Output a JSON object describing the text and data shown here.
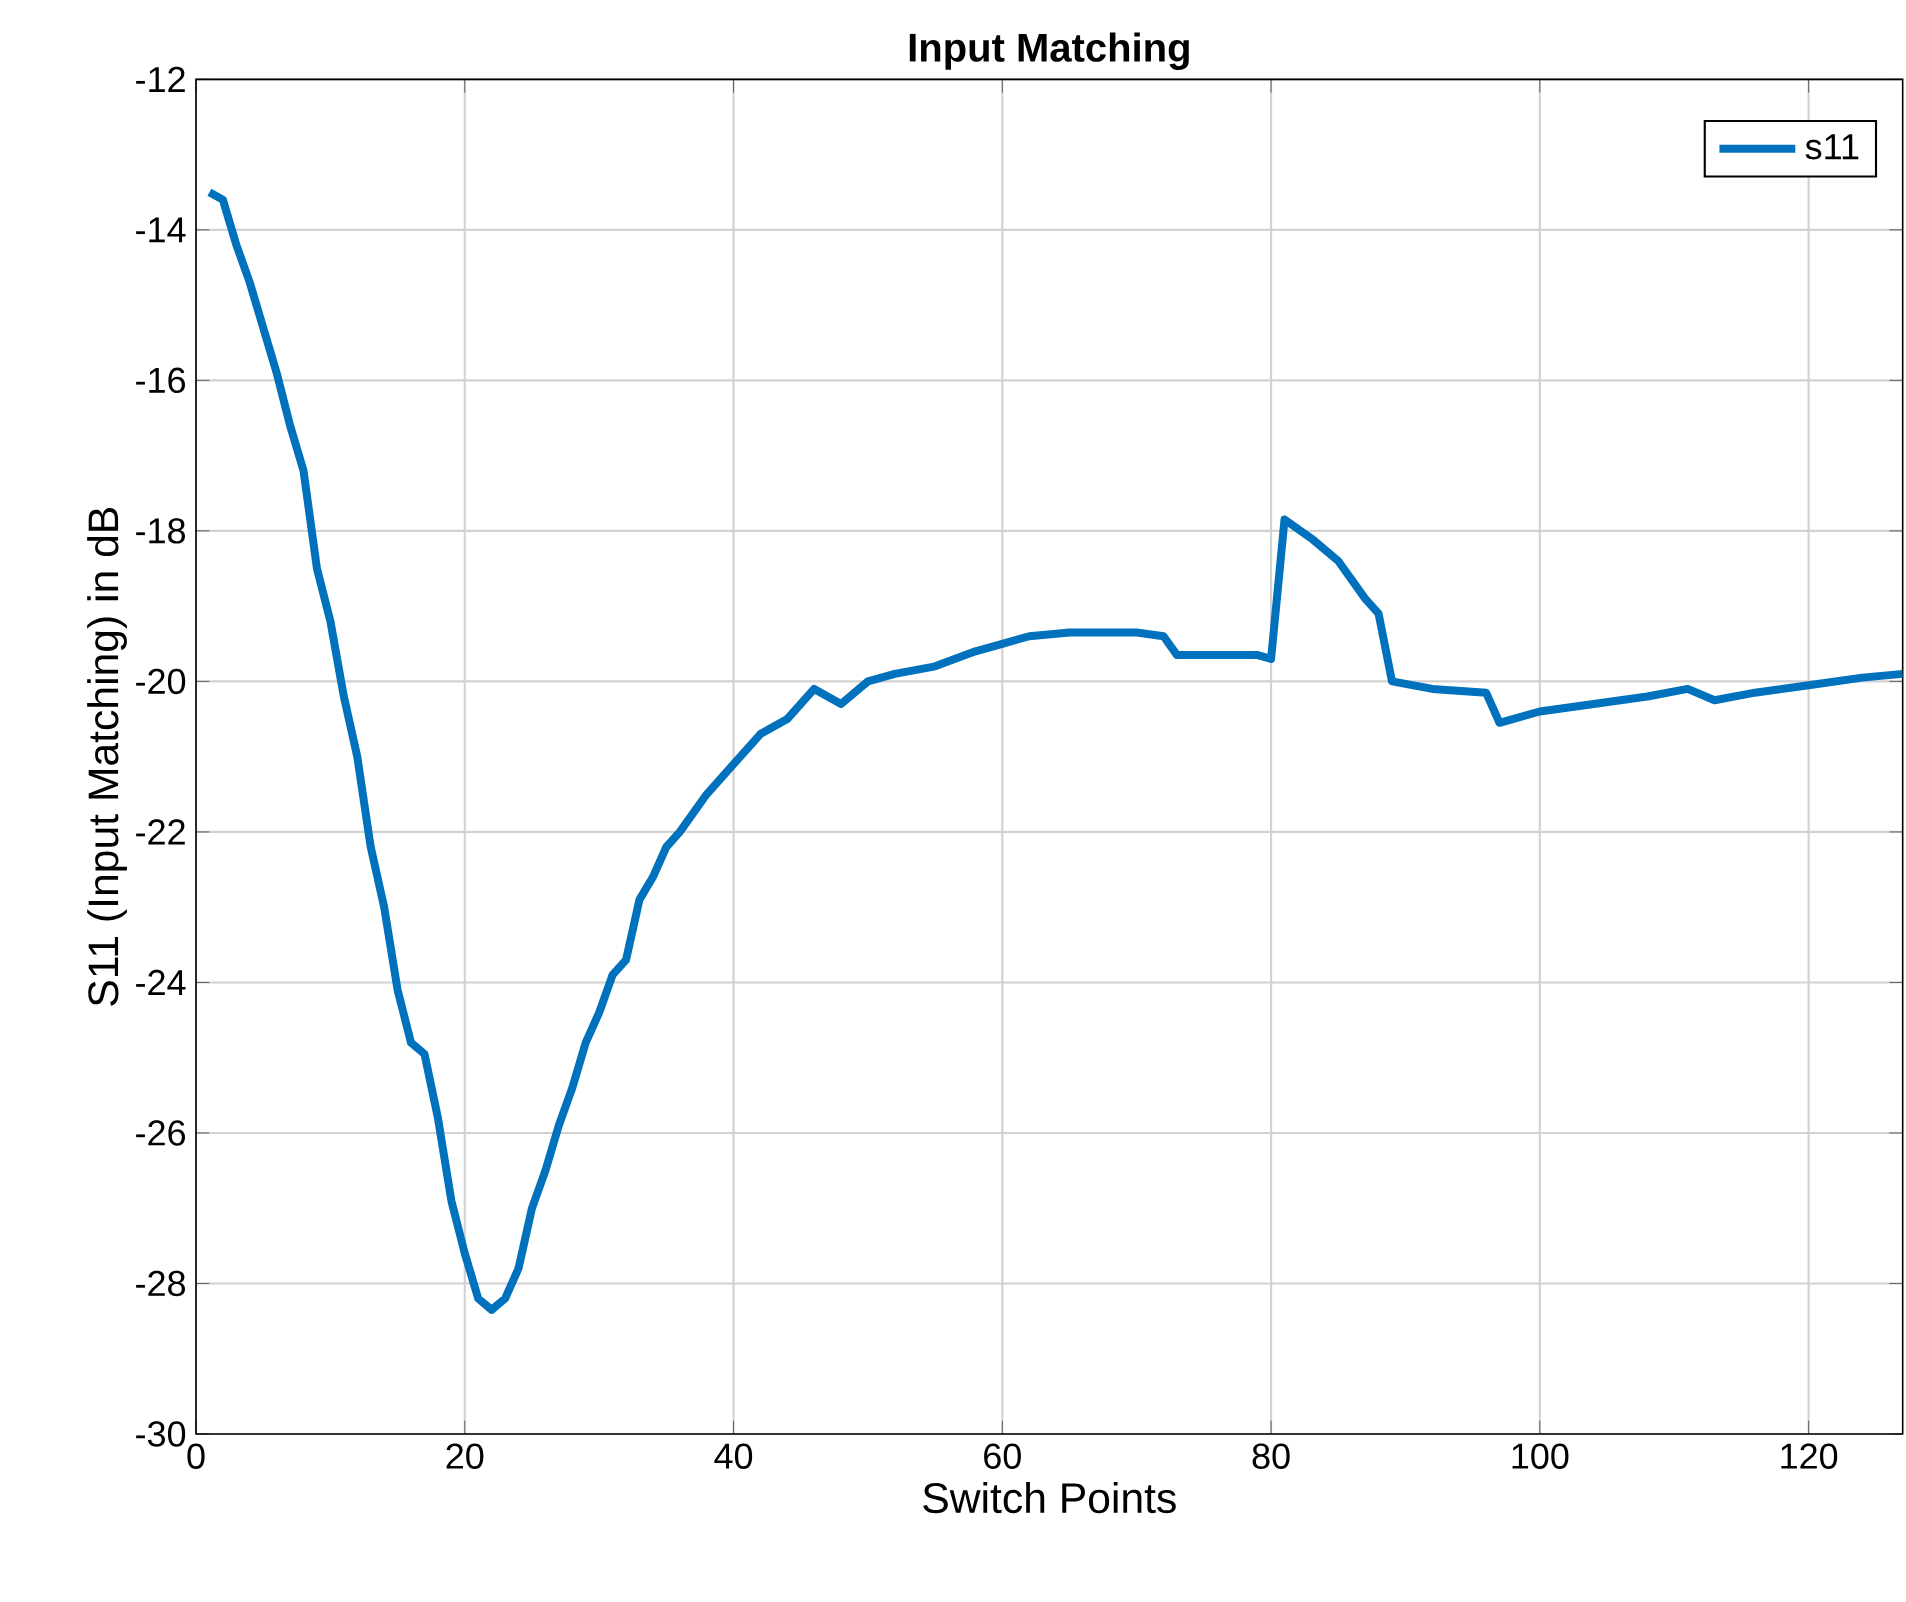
{
  "chart_data": {
    "type": "line",
    "title": "Input Matching",
    "xlabel": "Switch Points",
    "ylabel": "S11 (Input Matching) in dB",
    "x": [
      1,
      2,
      3,
      4,
      5,
      6,
      7,
      8,
      9,
      10,
      11,
      12,
      13,
      14,
      15,
      16,
      17,
      18,
      19,
      20,
      21,
      22,
      23,
      24,
      25,
      26,
      27,
      28,
      29,
      30,
      31,
      32,
      33,
      34,
      35,
      36,
      38,
      40,
      42,
      44,
      46,
      47,
      48,
      50,
      52,
      55,
      58,
      60,
      62,
      65,
      70,
      72,
      73,
      79,
      80,
      81,
      83,
      85,
      87,
      88,
      89,
      92,
      96,
      97,
      100,
      104,
      108,
      111,
      113,
      116,
      120,
      124,
      127
    ],
    "series": [
      {
        "name": "s11",
        "color": "#0072bd",
        "values": [
          -13.5,
          -13.6,
          -14.2,
          -14.7,
          -15.3,
          -15.9,
          -16.6,
          -17.2,
          -18.5,
          -19.2,
          -20.2,
          -21.0,
          -22.2,
          -23.0,
          -24.1,
          -24.8,
          -24.95,
          -25.8,
          -26.9,
          -27.6,
          -28.2,
          -28.35,
          -28.2,
          -27.8,
          -27.0,
          -26.5,
          -25.9,
          -25.4,
          -24.8,
          -24.4,
          -23.9,
          -23.7,
          -22.9,
          -22.6,
          -22.2,
          -22.0,
          -21.5,
          -21.1,
          -20.7,
          -20.5,
          -20.1,
          -20.2,
          -20.3,
          -20.0,
          -19.9,
          -19.8,
          -19.6,
          -19.5,
          -19.4,
          -19.35,
          -19.35,
          -19.4,
          -19.65,
          -19.65,
          -19.7,
          -17.85,
          -18.1,
          -18.4,
          -18.9,
          -19.1,
          -20.0,
          -20.1,
          -20.15,
          -20.55,
          -20.4,
          -20.3,
          -20.2,
          -20.1,
          -20.25,
          -20.15,
          -20.05,
          -19.95,
          -19.9
        ]
      }
    ],
    "xlim": [
      0,
      127
    ],
    "ylim": [
      -30,
      -12
    ],
    "xticks": [
      0,
      20,
      40,
      60,
      80,
      100,
      120
    ],
    "yticks": [
      -30,
      -28,
      -26,
      -24,
      -22,
      -20,
      -18,
      -16,
      -14,
      -12
    ],
    "grid": true,
    "legend": "top right",
    "marker": "none",
    "line_style": "solid"
  }
}
